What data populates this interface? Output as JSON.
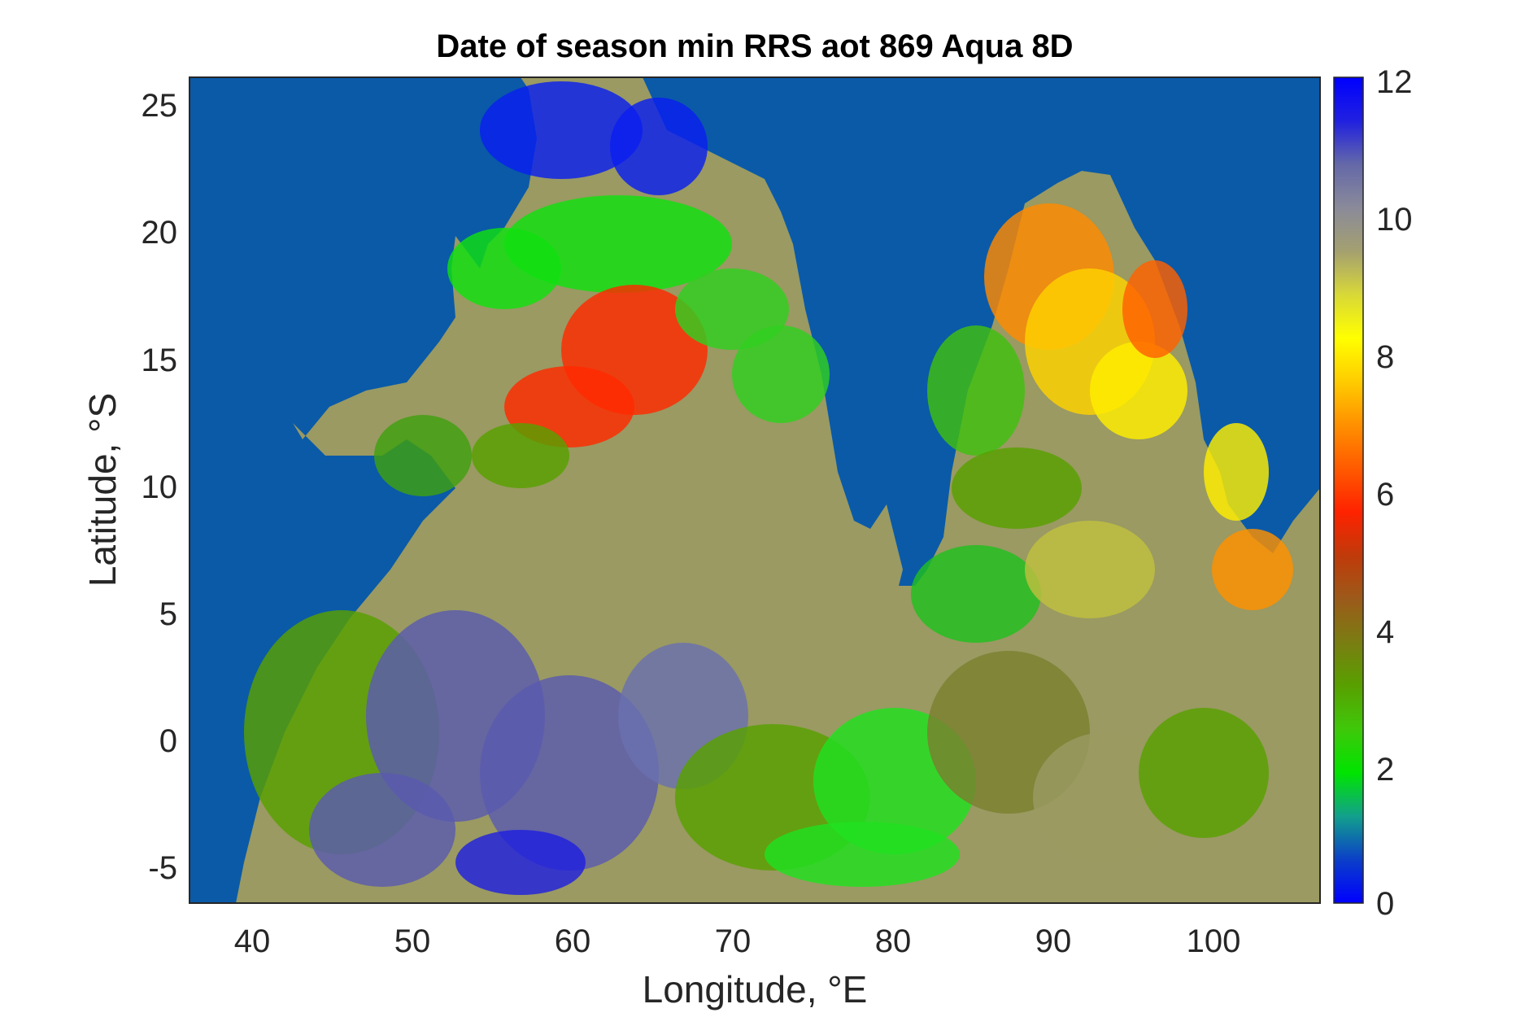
{
  "title": "Date of season min RRS aot 869 Aqua 8D",
  "map": {
    "type": "raster-map",
    "xlabel": "Longitude, °E",
    "ylabel": "Latitude, °S",
    "xlim": [
      36,
      106.5
    ],
    "ylim": [
      -6.5,
      26
    ],
    "xticks": [
      "40",
      "50",
      "60",
      "70",
      "80",
      "90",
      "100"
    ],
    "yticks": [
      "25",
      "20",
      "15",
      "10",
      "5",
      "0",
      "-5"
    ],
    "xtick_values": [
      40,
      50,
      60,
      70,
      80,
      90,
      100
    ],
    "ytick_values": [
      25,
      20,
      15,
      10,
      5,
      0,
      -5
    ],
    "water_color": "#0a5aa8",
    "colorbar": {
      "min": 0,
      "max": 12,
      "ticks": [
        "12",
        "10",
        "8",
        "6",
        "4",
        "2",
        "0"
      ],
      "tick_values": [
        12,
        10,
        8,
        6,
        4,
        2,
        0
      ],
      "stops": [
        "#0000ff",
        "#0b3fc8",
        "#12a08c",
        "#00e400",
        "#3fc80a",
        "#58a000",
        "#7a7d12",
        "#9c5a1a",
        "#c03a0a",
        "#ff2200",
        "#ff5a00",
        "#ff9000",
        "#ffcc00",
        "#ffff00",
        "#d8d838",
        "#a4a070",
        "#8a8a9a",
        "#6468a8",
        "#2020e0",
        "#0000ff"
      ]
    }
  }
}
